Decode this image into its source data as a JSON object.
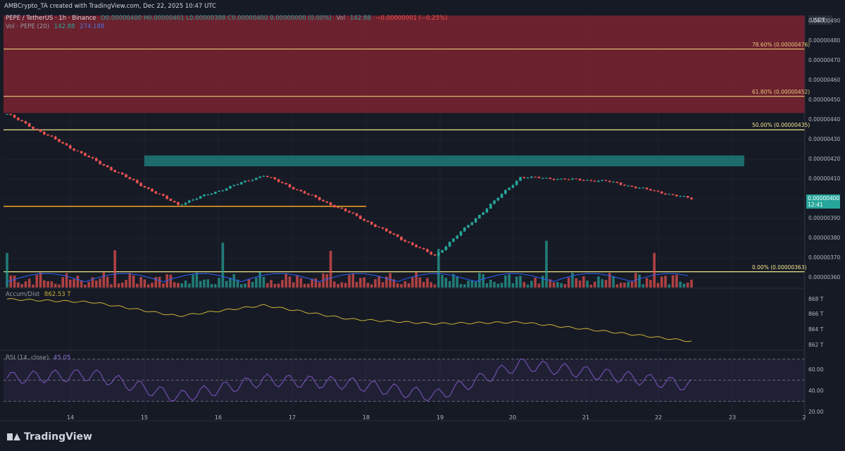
{
  "header": {
    "attribution": "AMBCrypto_TA created with TradingView.com, Dec 22, 2025 10:47 UTC"
  },
  "legend": {
    "symbol": "PEPE / TetherUS · 1h · Binance",
    "ohlc": "O0.00000400 H0.00000401 L0.00000398 C0.00000400 0.00000000 (0.00%)",
    "vol_label": "Vol",
    "vol_value": "142.88",
    "vol_change": "−0.00000001 (−0.25%)",
    "vol_ma_label": "Vol · PEPE (20)",
    "vol_ma_value1": "142.88",
    "vol_ma_value2": "274.188",
    "ad_label": "Accum/Dist",
    "ad_value": "862.53 T",
    "rsi_label": "RSI (14, close)",
    "rsi_value": "45.05"
  },
  "currency": "USDT",
  "price_axis": [
    "0.00000490",
    "0.00000480",
    "0.00000470",
    "0.00000460",
    "0.00000450",
    "0.00000440",
    "0.00000430",
    "0.00000420",
    "0.00000410",
    "0.00000400",
    "0.00000390",
    "0.00000380",
    "0.00000370",
    "0.00000360"
  ],
  "last_price": "0.00000400",
  "countdown": "12:41",
  "ad_axis": [
    "868 T",
    "866 T",
    "864 T",
    "862 T"
  ],
  "rsi_axis": [
    "60.00",
    "40.00",
    "20.00"
  ],
  "x_axis": [
    "14",
    "15",
    "16",
    "17",
    "18",
    "19",
    "20",
    "21",
    "22",
    "23",
    "2"
  ],
  "fib_levels": [
    {
      "label": "78.60% (0.00000476)",
      "price": 4.76e-06,
      "color": "#e8c77a"
    },
    {
      "label": "61.80% (0.00000452)",
      "price": 4.52e-06,
      "color": "#e8c77a"
    },
    {
      "label": "50.00% (0.00000435)",
      "price": 4.35e-06,
      "color": "#f0e68c"
    },
    {
      "label": "0.00% (0.00000363)",
      "price": 3.63e-06,
      "color": "#f0e68c"
    }
  ],
  "colors": {
    "bull": "#26a69a",
    "bear": "#ef5350",
    "supply_zone": "#7a2330",
    "fvg": "#1f7a7a",
    "ad": "#c9b037",
    "rsi": "#7e57c2",
    "support": "#f5a623"
  },
  "footer": {
    "brand": "TradingView"
  },
  "chart_data": {
    "type": "line",
    "title": "PEPE / TetherUS · 1h · Binance",
    "x": [
      "14",
      "15",
      "16",
      "17",
      "18",
      "19",
      "20",
      "21",
      "22"
    ],
    "series": [
      {
        "name": "PEPE / TetherUS",
        "values": [
          4.43e-06,
          4.2e-06,
          3.97e-06,
          4.12e-06,
          3.93e-06,
          3.71e-06,
          4.11e-06,
          4.09e-06,
          4e-06
        ]
      }
    ],
    "ylim": [
      3.55e-06,
      4.93e-06
    ],
    "indicators": {
      "accum_dist": {
        "values": [
          868.0,
          867.6,
          865.8,
          867.2,
          865.4,
          864.8,
          865.0,
          863.8,
          862.5
        ],
        "ylim": [
          861.8,
          868.6
        ]
      },
      "rsi": {
        "values": [
          52,
          55,
          34,
          50,
          47,
          35,
          65,
          55,
          45
        ],
        "ylim": [
          15,
          75
        ]
      }
    }
  }
}
